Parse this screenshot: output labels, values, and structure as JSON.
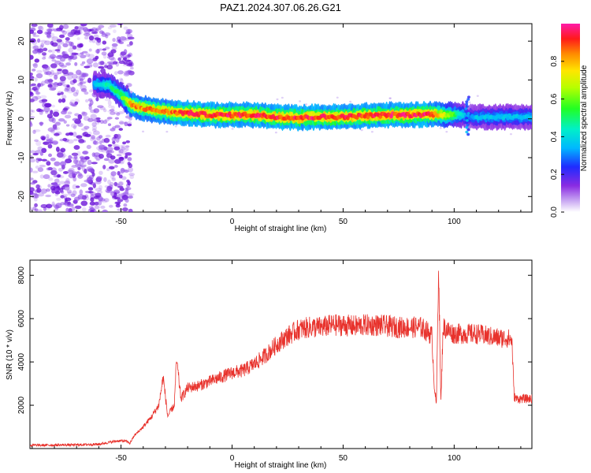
{
  "title": "PAZ1.2024.307.06.26.G21",
  "colors": {
    "snr_line": "#e8322c",
    "spectrum_peak": "#ff1a1a",
    "scatter": "#7a1ee8",
    "background": "#ffffff"
  },
  "chart_data": [
    {
      "type": "heatmap",
      "xlabel": "Height of straight line (km)",
      "ylabel": "Frequency (Hz)",
      "xlim": [
        -91,
        135
      ],
      "ylim": [
        -24,
        24.5
      ],
      "xticks": [
        -50,
        0,
        50,
        100
      ],
      "yticks": [
        -20,
        -10,
        0,
        10,
        20
      ],
      "colorbar": {
        "label": "Normalized spectral amplitude",
        "range": [
          0,
          1
        ],
        "ticks": [
          0.0,
          0.2,
          0.4,
          0.6,
          0.8
        ],
        "colormap": "rainbow"
      },
      "ridge": {
        "x": [
          -62,
          -55,
          -50,
          -47,
          -45,
          -42,
          -38,
          -30,
          -20,
          -10,
          0,
          10,
          20,
          30,
          40,
          50,
          60,
          70,
          80,
          90,
          100,
          105,
          106,
          110,
          120,
          130,
          135
        ],
        "y": [
          9,
          8.5,
          6,
          4.5,
          3.5,
          3.0,
          2.5,
          1.8,
          1.5,
          1.0,
          1.0,
          1.0,
          0.5,
          0.3,
          0.5,
          0.5,
          0.8,
          1.0,
          1.0,
          1.2,
          1.0,
          1.0,
          0.5,
          0.5,
          0.5,
          0.5,
          0.5
        ],
        "amp": [
          0.4,
          0.5,
          0.6,
          0.8,
          0.9,
          0.9,
          0.9,
          0.9,
          1.0,
          1.0,
          1.0,
          1.0,
          1.0,
          1.0,
          1.0,
          1.0,
          1.0,
          1.0,
          1.0,
          1.0,
          0.6,
          0.4,
          0.3,
          0.4,
          0.4,
          0.4,
          0.4
        ]
      },
      "noise_region_x": [
        -91,
        -45
      ]
    },
    {
      "type": "line",
      "xlabel": "Height of straight line (km)",
      "ylabel": "SNR (10 * v/v)",
      "xlim": [
        -91,
        135
      ],
      "ylim": [
        0,
        8700
      ],
      "xticks": [
        -50,
        0,
        50,
        100
      ],
      "yticks": [
        2000,
        4000,
        6000,
        8000
      ],
      "series": [
        {
          "x": [
            -91,
            -70,
            -60,
            -52,
            -48,
            -46,
            -44,
            -40,
            -36,
            -33,
            -31,
            -29,
            -26,
            -25,
            -23,
            -20,
            -15,
            -10,
            -5,
            0,
            5,
            10,
            15,
            20,
            25,
            30,
            35,
            40,
            45,
            50,
            55,
            60,
            65,
            70,
            75,
            80,
            85,
            88,
            90,
            91,
            92,
            93,
            94,
            95,
            98,
            100,
            105,
            110,
            115,
            120,
            124,
            126,
            127,
            128,
            130,
            135
          ],
          "y": [
            150,
            170,
            200,
            350,
            350,
            250,
            600,
            1000,
            1500,
            2000,
            3300,
            1500,
            2000,
            4100,
            2300,
            2800,
            2900,
            3100,
            3300,
            3500,
            3600,
            3900,
            4300,
            4800,
            5200,
            5500,
            5600,
            5600,
            5700,
            5700,
            5650,
            5700,
            5700,
            5650,
            5600,
            5600,
            5600,
            5400,
            5200,
            3000,
            2000,
            8600,
            2000,
            5600,
            5400,
            5300,
            5300,
            5300,
            5200,
            5100,
            5100,
            5000,
            2400,
            2300,
            2300,
            2300
          ]
        }
      ]
    }
  ]
}
